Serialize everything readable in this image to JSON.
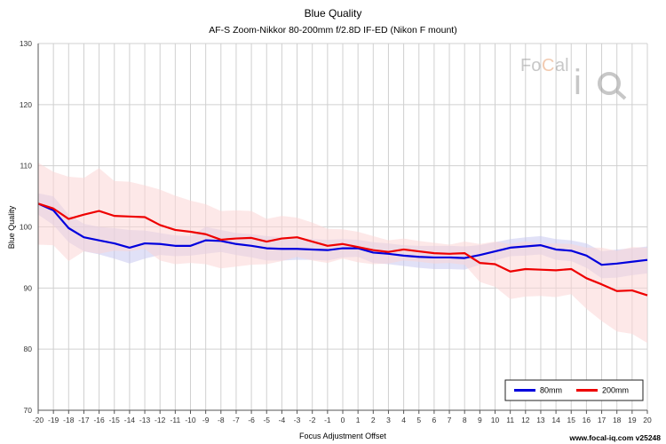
{
  "chart_data": {
    "type": "line",
    "title": "Blue Quality",
    "subtitle": "AF-S Zoom-Nikkor 80-200mm f/2.8D IF-ED (Nikon F mount)",
    "xlabel": "Focus Adjustment Offset",
    "ylabel": "Blue Quality",
    "xlim": [
      -20,
      20
    ],
    "ylim": [
      70,
      130
    ],
    "x_ticks": [
      -20,
      -19,
      -18,
      -17,
      -16,
      -15,
      -14,
      -13,
      -12,
      -11,
      -10,
      -9,
      -8,
      -7,
      -6,
      -5,
      -4,
      -3,
      -2,
      -1,
      0,
      1,
      2,
      3,
      4,
      5,
      6,
      7,
      8,
      9,
      10,
      11,
      12,
      13,
      14,
      15,
      16,
      17,
      18,
      19,
      20
    ],
    "y_ticks": [
      70,
      80,
      90,
      100,
      110,
      120,
      130
    ],
    "grid": true,
    "legend_position": "bottom-right",
    "x": [
      -20,
      -19,
      -18,
      -17,
      -16,
      -15,
      -14,
      -13,
      -12,
      -11,
      -10,
      -9,
      -8,
      -7,
      -6,
      -5,
      -4,
      -3,
      -2,
      -1,
      0,
      1,
      2,
      3,
      4,
      5,
      6,
      7,
      8,
      9,
      10,
      11,
      12,
      13,
      14,
      15,
      16,
      17,
      18,
      19,
      20
    ],
    "series": [
      {
        "name": "80mm",
        "color": "#0000dd",
        "band_color": "#c8c8f0",
        "values": [
          103.8,
          102.7,
          99.8,
          98.3,
          97.8,
          97.3,
          96.6,
          97.3,
          97.2,
          96.9,
          96.9,
          97.8,
          97.7,
          97.2,
          96.9,
          96.5,
          96.4,
          96.4,
          96.3,
          96.2,
          96.5,
          96.5,
          95.8,
          95.6,
          95.3,
          95.1,
          95.0,
          95.0,
          94.9,
          95.4,
          96.0,
          96.6,
          96.8,
          97.0,
          96.3,
          96.1,
          95.3,
          93.8,
          94.0,
          94.3,
          94.6
        ],
        "band_upper": [
          105.5,
          105.0,
          102.0,
          100.5,
          100.0,
          99.8,
          99.5,
          99.4,
          99.0,
          98.6,
          98.5,
          100.0,
          99.5,
          99.0,
          98.8,
          98.5,
          98.3,
          98.2,
          98.0,
          97.9,
          98.0,
          97.9,
          97.5,
          97.3,
          97.0,
          96.9,
          96.9,
          96.9,
          96.8,
          97.0,
          97.5,
          98.0,
          98.3,
          98.5,
          98.0,
          97.8,
          97.3,
          96.0,
          96.3,
          96.5,
          96.8
        ],
        "band_lower": [
          102.0,
          100.3,
          97.5,
          96.0,
          95.5,
          94.8,
          94.0,
          94.8,
          95.4,
          95.2,
          95.3,
          95.6,
          95.9,
          95.4,
          95.0,
          94.5,
          94.5,
          94.6,
          94.6,
          94.5,
          95.0,
          95.1,
          94.1,
          93.9,
          93.6,
          93.3,
          93.1,
          93.1,
          93.0,
          93.8,
          94.5,
          95.2,
          95.3,
          95.5,
          94.6,
          94.4,
          93.3,
          91.6,
          91.7,
          92.1,
          92.4
        ]
      },
      {
        "name": "200mm",
        "color": "#ee0000",
        "band_color": "#fbd6d6",
        "values": [
          103.8,
          103.0,
          101.3,
          102.0,
          102.6,
          101.8,
          101.7,
          101.6,
          100.3,
          99.5,
          99.2,
          98.8,
          97.9,
          98.1,
          98.2,
          97.6,
          98.1,
          98.3,
          97.6,
          96.9,
          97.2,
          96.7,
          96.2,
          95.9,
          96.3,
          96.0,
          95.7,
          95.6,
          95.7,
          94.1,
          93.9,
          92.7,
          93.1,
          93.0,
          92.9,
          93.1,
          91.6,
          90.6,
          89.5,
          89.6,
          88.8
        ],
        "band_upper": [
          110.5,
          109.0,
          108.2,
          108.0,
          109.6,
          107.5,
          107.4,
          106.8,
          106.1,
          105.1,
          104.3,
          103.7,
          102.6,
          102.7,
          102.6,
          101.3,
          101.8,
          101.5,
          100.7,
          99.7,
          99.6,
          99.2,
          98.5,
          97.8,
          98.1,
          97.7,
          97.4,
          97.1,
          97.6,
          97.2,
          97.6,
          97.2,
          97.6,
          97.3,
          97.3,
          97.2,
          96.6,
          96.6,
          96.1,
          96.7,
          96.6
        ],
        "band_lower": [
          97.1,
          97.0,
          94.4,
          96.0,
          95.6,
          96.1,
          96.0,
          96.4,
          94.5,
          93.9,
          94.1,
          93.9,
          93.2,
          93.5,
          93.8,
          93.9,
          94.4,
          95.1,
          94.5,
          94.1,
          94.8,
          94.2,
          93.9,
          94.0,
          94.5,
          94.3,
          94.0,
          94.1,
          93.8,
          91.0,
          90.2,
          88.2,
          88.6,
          88.7,
          88.5,
          89.0,
          86.6,
          84.6,
          82.9,
          82.5,
          81.0
        ]
      }
    ],
    "footer": "www.focal-iq.com  v25248",
    "logo_text": "FoCal iQ"
  }
}
